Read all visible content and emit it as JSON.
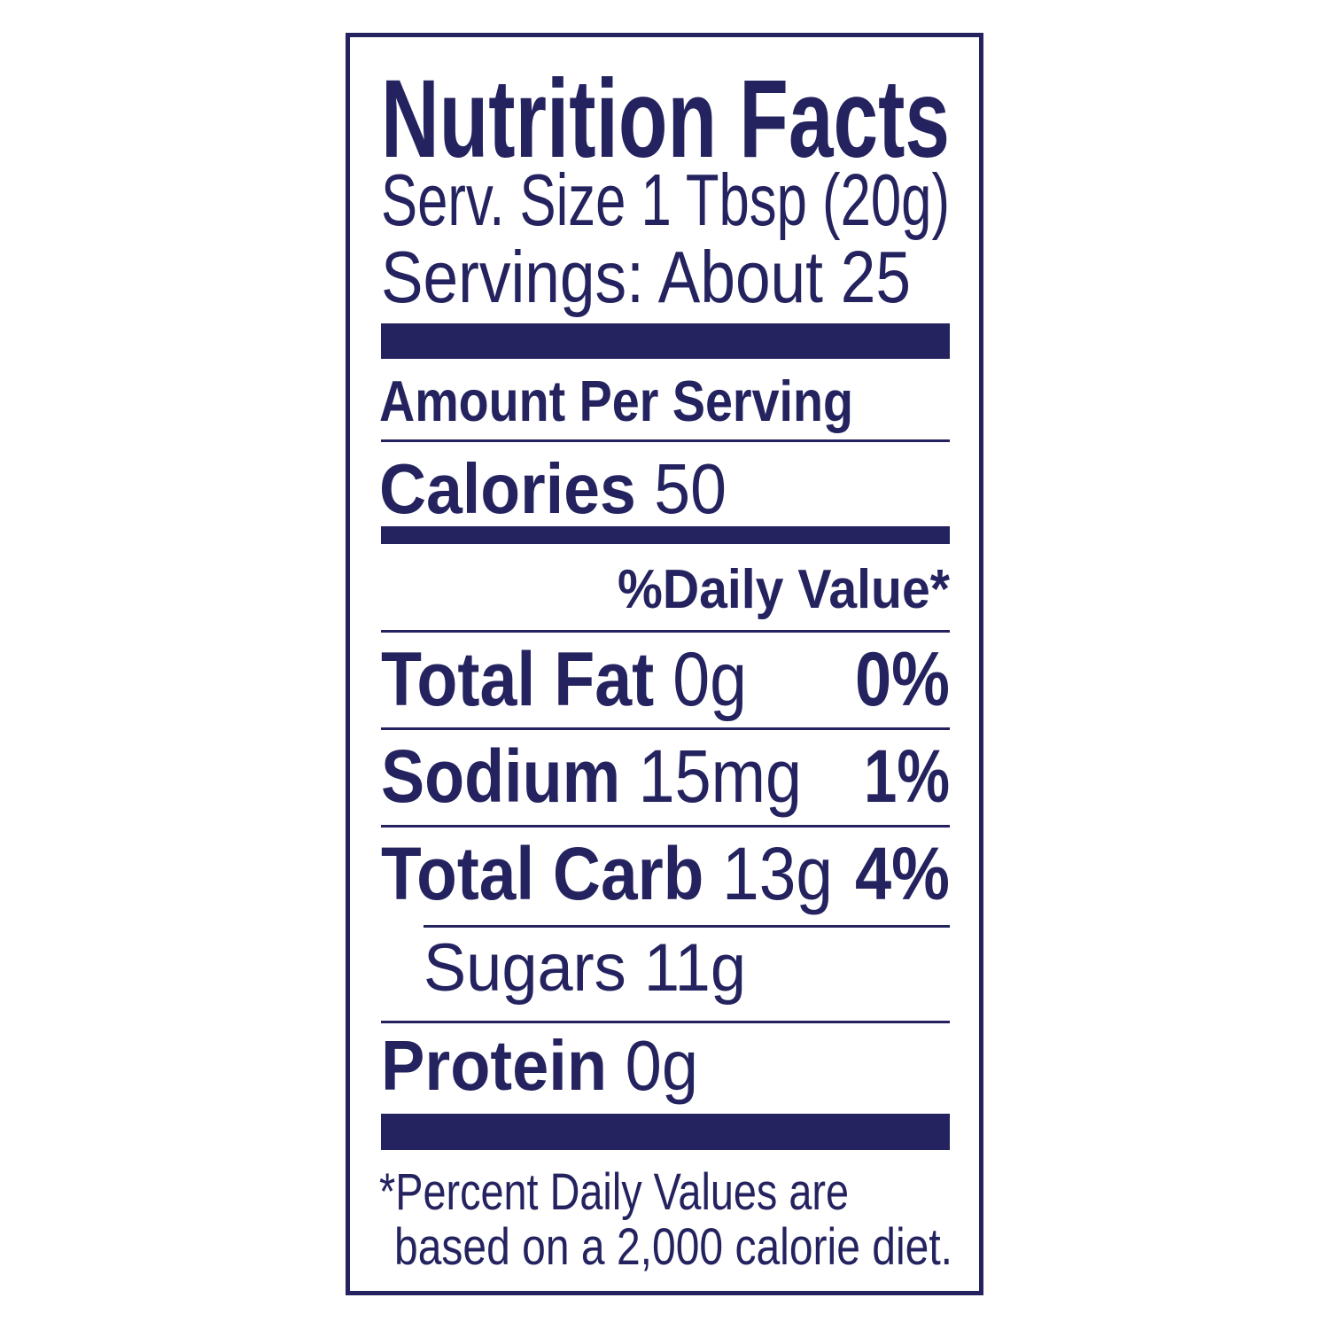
{
  "title": "Nutrition Facts",
  "serving_size": "Serv. Size 1 Tbsp (20g)",
  "servings": "Servings: About 25",
  "amount_per_serving": "Amount Per Serving",
  "calories": {
    "label": "Calories",
    "value": "50"
  },
  "daily_value_header": "%Daily Value*",
  "nutrients": [
    {
      "label": "Total Fat",
      "amount": "0g",
      "dv": "0%"
    },
    {
      "label": "Sodium",
      "amount": "15mg",
      "dv": "1%"
    },
    {
      "label": "Total Carb",
      "amount": "13g",
      "dv": "4%"
    },
    {
      "label": "Sugars",
      "amount": "11g"
    },
    {
      "label": "Protein",
      "amount": "0g"
    }
  ],
  "footnote": [
    "*Percent Daily Values are",
    "based on a 2,000 calorie diet."
  ]
}
